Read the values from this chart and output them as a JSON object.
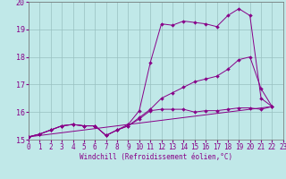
{
  "xlabel": "Windchill (Refroidissement éolien,°C)",
  "bg_color": "#c0e8e8",
  "line_color": "#880088",
  "grid_color": "#98c0c0",
  "xlim": [
    0,
    23
  ],
  "ylim": [
    15,
    20
  ],
  "yticks": [
    15,
    16,
    17,
    18,
    19,
    20
  ],
  "xticks": [
    0,
    1,
    2,
    3,
    4,
    5,
    6,
    7,
    8,
    9,
    10,
    11,
    12,
    13,
    14,
    15,
    16,
    17,
    18,
    19,
    20,
    21,
    22,
    23
  ],
  "series1_x": [
    0,
    1,
    2,
    3,
    4,
    5,
    6,
    7,
    8,
    9,
    10,
    11,
    12,
    13,
    14,
    15,
    16,
    17,
    18,
    19,
    20,
    21,
    22
  ],
  "series1_y": [
    15.1,
    15.2,
    15.35,
    15.5,
    15.55,
    15.5,
    15.5,
    15.15,
    15.35,
    15.55,
    16.05,
    17.8,
    19.2,
    19.15,
    19.3,
    19.25,
    19.2,
    19.1,
    19.5,
    19.75,
    19.5,
    16.5,
    16.2
  ],
  "series2_x": [
    0,
    1,
    2,
    3,
    4,
    5,
    6,
    7,
    8,
    9,
    10,
    11,
    12,
    13,
    14,
    15,
    16,
    17,
    18,
    19,
    20,
    21,
    22
  ],
  "series2_y": [
    15.1,
    15.2,
    15.35,
    15.5,
    15.55,
    15.5,
    15.5,
    15.15,
    15.35,
    15.5,
    15.75,
    16.05,
    16.1,
    16.1,
    16.1,
    16.0,
    16.05,
    16.05,
    16.1,
    16.15,
    16.15,
    16.1,
    16.2
  ],
  "series3_x": [
    0,
    1,
    2,
    3,
    4,
    5,
    6,
    7,
    8,
    9,
    10,
    11,
    12,
    13,
    14,
    15,
    16,
    17,
    18,
    19,
    20,
    21,
    22
  ],
  "series3_y": [
    15.1,
    15.2,
    15.35,
    15.5,
    15.55,
    15.5,
    15.5,
    15.15,
    15.35,
    15.5,
    15.8,
    16.1,
    16.5,
    16.7,
    16.9,
    17.1,
    17.2,
    17.3,
    17.55,
    17.9,
    18.0,
    16.85,
    16.2
  ],
  "series4_x": [
    0,
    22
  ],
  "series4_y": [
    15.1,
    16.2
  ],
  "tick_color": "#880088",
  "xlabel_color": "#880088",
  "tick_fontsize": 5.5,
  "xlabel_fontsize": 5.5
}
